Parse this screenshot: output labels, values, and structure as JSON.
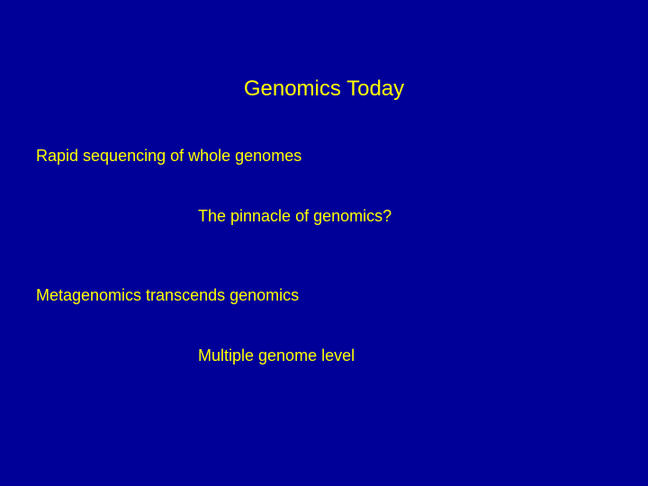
{
  "slide": {
    "background_color": "#000099",
    "text_color": "#ffff00",
    "title": "Genomics Today",
    "title_fontsize": 24,
    "body_fontsize": 18,
    "lines": {
      "line1": "Rapid sequencing of whole genomes",
      "line2": "The pinnacle of genomics?",
      "line3": "Metagenomics transcends genomics",
      "line4": "Multiple genome level"
    }
  }
}
